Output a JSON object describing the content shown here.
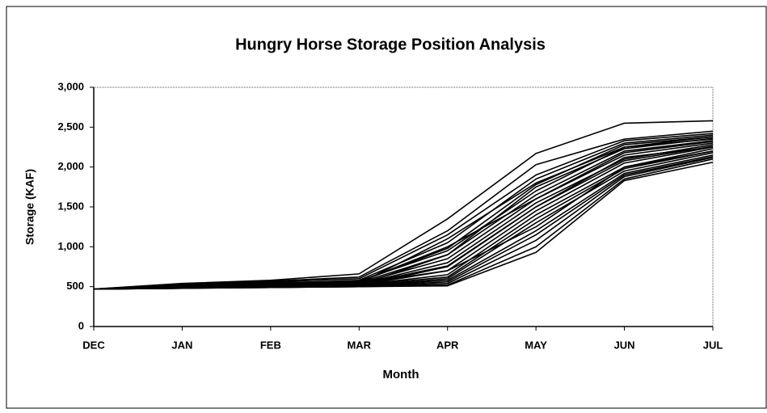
{
  "chart_data": {
    "type": "line",
    "title": "Hungry Horse Storage Position Analysis",
    "x_label": "Month",
    "y_label": "Storage (KAF)",
    "categories": [
      "DEC",
      "JAN",
      "FEB",
      "MAR",
      "APR",
      "MAY",
      "JUN",
      "JUL"
    ],
    "ylim": [
      0,
      3000
    ],
    "yticks": [
      0,
      500,
      {
        "value": 1000,
        "label": "1,000"
      },
      {
        "value": 1500,
        "label": "1,500"
      },
      {
        "value": 2000,
        "label": "2,000"
      },
      {
        "value": 2500,
        "label": "2,500"
      },
      {
        "value": 3000,
        "label": "3,000"
      }
    ],
    "grid": false,
    "series": [
      {
        "color": "#000000",
        "values": [
          470,
          540,
          580,
          660,
          1350,
          2170,
          2550,
          2580
        ]
      },
      {
        "color": "#000000",
        "values": [
          470,
          530,
          570,
          620,
          1200,
          2030,
          2350,
          2450
        ]
      },
      {
        "color": "#000000",
        "values": [
          470,
          520,
          560,
          600,
          1150,
          1900,
          2330,
          2420
        ]
      },
      {
        "color": "#000000",
        "values": [
          470,
          510,
          540,
          580,
          1050,
          1850,
          2300,
          2400
        ]
      },
      {
        "color": "#000000",
        "values": [
          470,
          500,
          530,
          560,
          980,
          1780,
          2280,
          2380
        ]
      },
      {
        "color": "#000000",
        "values": [
          470,
          520,
          550,
          570,
          950,
          1700,
          2250,
          2350
        ]
      },
      {
        "color": "#000000",
        "values": [
          470,
          510,
          530,
          550,
          900,
          1650,
          2200,
          2330
        ]
      },
      {
        "color": "#000000",
        "values": [
          470,
          500,
          520,
          540,
          850,
          1600,
          2150,
          2300
        ]
      },
      {
        "color": "#000000",
        "values": [
          470,
          490,
          510,
          530,
          800,
          1550,
          2100,
          2280
        ]
      },
      {
        "color": "#000000",
        "values": [
          470,
          500,
          520,
          530,
          760,
          1500,
          2080,
          2260
        ]
      },
      {
        "color": "#000000",
        "values": [
          470,
          510,
          520,
          540,
          700,
          1450,
          2050,
          2250
        ]
      },
      {
        "color": "#000000",
        "values": [
          470,
          490,
          500,
          520,
          650,
          1400,
          2000,
          2230
        ]
      },
      {
        "color": "#000000",
        "values": [
          470,
          500,
          510,
          520,
          620,
          1350,
          1980,
          2200
        ]
      },
      {
        "color": "#000000",
        "values": [
          470,
          490,
          500,
          510,
          600,
          1300,
          1950,
          2180
        ]
      },
      {
        "color": "#000000",
        "values": [
          470,
          480,
          500,
          510,
          580,
          1200,
          1920,
          2150
        ]
      },
      {
        "color": "#000000",
        "values": [
          470,
          490,
          500,
          505,
          560,
          1150,
          1900,
          2130
        ]
      },
      {
        "color": "#000000",
        "values": [
          470,
          480,
          490,
          500,
          540,
          1080,
          1880,
          2120
        ]
      },
      {
        "color": "#000000",
        "values": [
          470,
          480,
          490,
          500,
          520,
          1000,
          1850,
          2100
        ]
      },
      {
        "color": "#000000",
        "values": [
          470,
          480,
          490,
          500,
          510,
          930,
          1830,
          2060
        ]
      },
      {
        "color": "#000000",
        "values": [
          470,
          500,
          510,
          520,
          700,
          1250,
          2000,
          2200
        ]
      },
      {
        "color": "#000000",
        "values": [
          470,
          510,
          530,
          560,
          1000,
          1600,
          2180,
          2320
        ]
      },
      {
        "color": "#000000",
        "values": [
          470,
          490,
          510,
          520,
          900,
          1750,
          2230,
          2360
        ]
      },
      {
        "color": "#000000",
        "values": [
          470,
          500,
          520,
          540,
          1100,
          1800,
          2250,
          2380
        ]
      },
      {
        "color": "#000000",
        "values": [
          470,
          480,
          500,
          510,
          750,
          1500,
          2120,
          2250
        ]
      }
    ]
  }
}
